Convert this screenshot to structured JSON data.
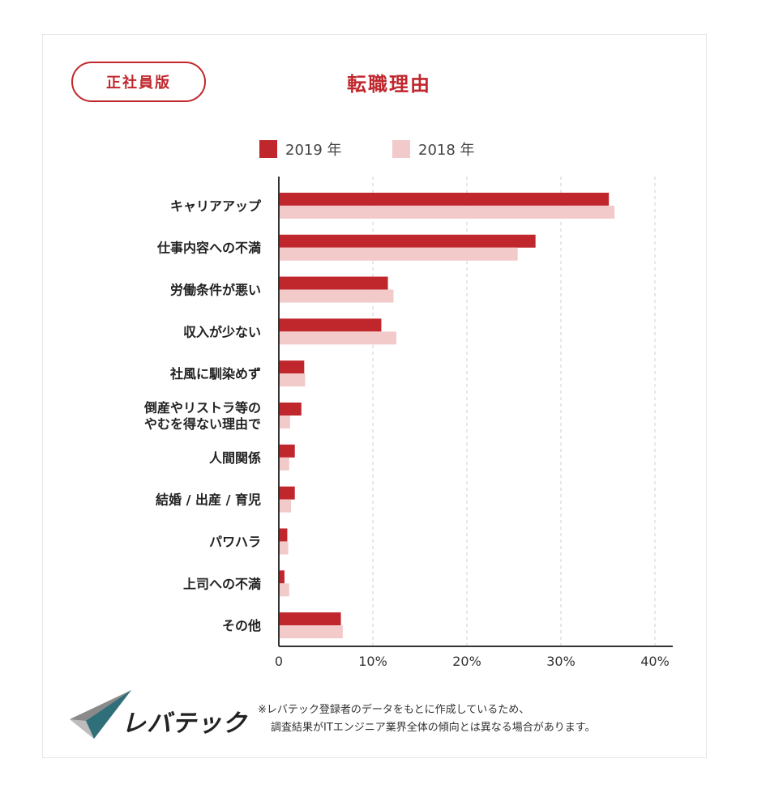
{
  "badge": "正社員版",
  "colors": {
    "primary": "#c0272d",
    "secondary": "#f3caca"
  },
  "footer": {
    "logo_text": "レバテック",
    "note_line1": "※レバテック登録者のデータをもとに作成しているため、",
    "note_line2": "調査結果がITエンジニア業界全体の傾向とは異なる場合があります。"
  },
  "chart_data": {
    "type": "bar",
    "orientation": "horizontal",
    "title": "転職理由",
    "categories": [
      "キャリアアップ",
      "仕事内容への不満",
      "労働条件が悪い",
      "収入が少ない",
      "社風に馴染めず",
      "倒産やリストラ等の\nやむを得ない理由で",
      "人間関係",
      "結婚 / 出産 / 育児",
      "パワハラ",
      "上司への不満",
      "その他"
    ],
    "series": [
      {
        "name": "2019 年",
        "color": "#c0272d",
        "values": [
          35.1,
          27.3,
          11.6,
          10.9,
          2.7,
          2.4,
          1.7,
          1.7,
          0.9,
          0.6,
          6.6
        ]
      },
      {
        "name": "2018 年",
        "color": "#f3caca",
        "values": [
          35.7,
          25.4,
          12.2,
          12.5,
          2.8,
          1.2,
          1.1,
          1.3,
          1.0,
          1.1,
          6.8
        ]
      }
    ],
    "xlim": [
      0,
      40
    ],
    "xticks": [
      "0",
      "10%",
      "20%",
      "30%",
      "40%"
    ],
    "xlabel": "",
    "ylabel": "",
    "grid": true,
    "legend": "top"
  }
}
